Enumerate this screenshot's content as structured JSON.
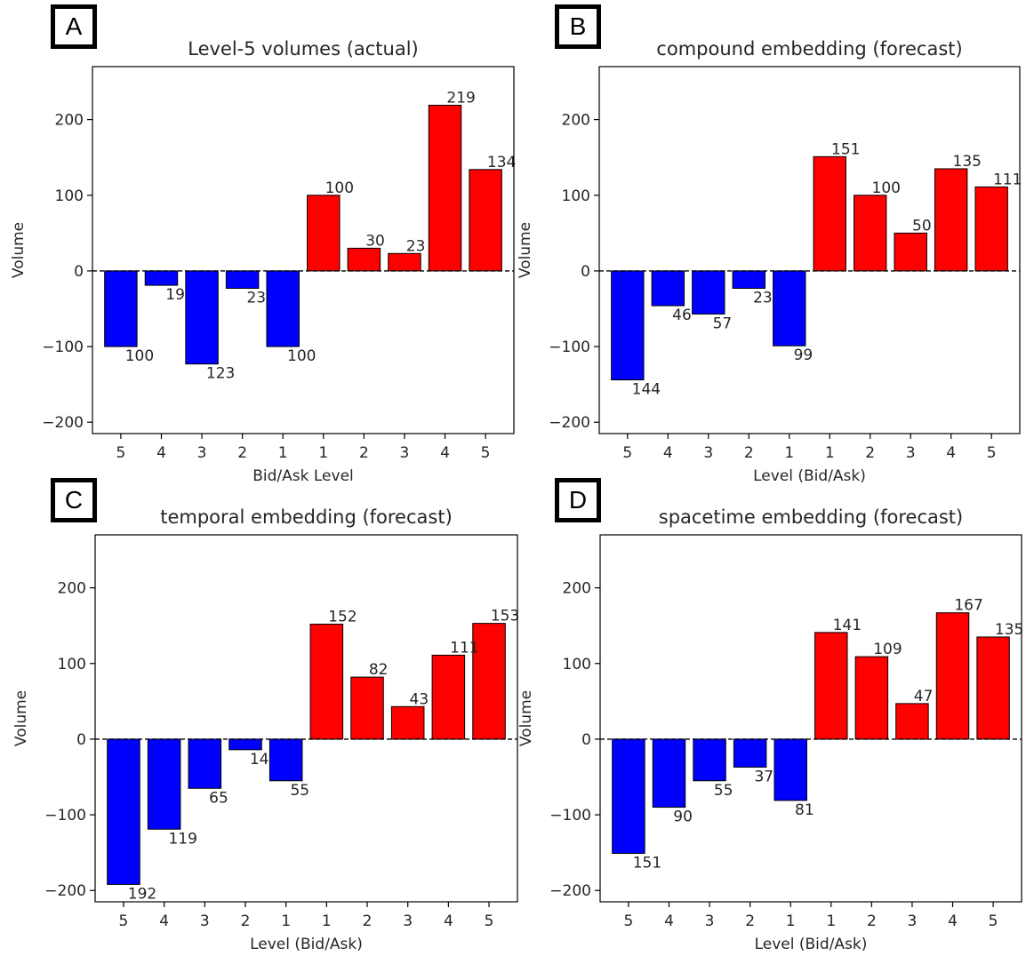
{
  "chart_data": [
    {
      "panel": "A",
      "type": "bar",
      "title": "Level-5 volumes (actual)",
      "xlabel": "Bid/Ask Level",
      "ylabel": "Volume",
      "ylim": [
        -215,
        270
      ],
      "yticks": [
        -200,
        -100,
        0,
        100,
        200
      ],
      "categories": [
        "5",
        "4",
        "3",
        "2",
        "1",
        "1",
        "2",
        "3",
        "4",
        "5"
      ],
      "values": [
        -100,
        -19,
        -123,
        -23,
        -100,
        100,
        30,
        23,
        219,
        134
      ],
      "data_labels": [
        "100",
        "19",
        "123",
        "23",
        "100",
        "100",
        "30",
        "23",
        "219",
        "134"
      ],
      "colors": {
        "bid": "#0000ff",
        "ask": "#ff0000"
      }
    },
    {
      "panel": "B",
      "type": "bar",
      "title": "compound embedding (forecast)",
      "xlabel": "Level (Bid/Ask)",
      "ylabel": "Volume",
      "ylim": [
        -215,
        270
      ],
      "yticks": [
        -200,
        -100,
        0,
        100,
        200
      ],
      "categories": [
        "5",
        "4",
        "3",
        "2",
        "1",
        "1",
        "2",
        "3",
        "4",
        "5"
      ],
      "values": [
        -144,
        -46,
        -57,
        -23,
        -99,
        151,
        100,
        50,
        135,
        111
      ],
      "data_labels": [
        "144",
        "46",
        "57",
        "23",
        "99",
        "151",
        "100",
        "50",
        "135",
        "111"
      ],
      "colors": {
        "bid": "#0000ff",
        "ask": "#ff0000"
      }
    },
    {
      "panel": "C",
      "type": "bar",
      "title": "temporal embedding (forecast)",
      "xlabel": "Level (Bid/Ask)",
      "ylabel": "Volume",
      "ylim": [
        -215,
        270
      ],
      "yticks": [
        -200,
        -100,
        0,
        100,
        200
      ],
      "categories": [
        "5",
        "4",
        "3",
        "2",
        "1",
        "1",
        "2",
        "3",
        "4",
        "5"
      ],
      "values": [
        -192,
        -119,
        -65,
        -14,
        -55,
        152,
        82,
        43,
        111,
        153
      ],
      "data_labels": [
        "192",
        "119",
        "65",
        "14",
        "55",
        "152",
        "82",
        "43",
        "111",
        "153"
      ],
      "colors": {
        "bid": "#0000ff",
        "ask": "#ff0000"
      }
    },
    {
      "panel": "D",
      "type": "bar",
      "title": "spacetime embedding (forecast)",
      "xlabel": "Level (Bid/Ask)",
      "ylabel": "Volume",
      "ylim": [
        -215,
        270
      ],
      "yticks": [
        -200,
        -100,
        0,
        100,
        200
      ],
      "categories": [
        "5",
        "4",
        "3",
        "2",
        "1",
        "1",
        "2",
        "3",
        "4",
        "5"
      ],
      "values": [
        -151,
        -90,
        -55,
        -37,
        -81,
        141,
        109,
        47,
        167,
        135
      ],
      "data_labels": [
        "151",
        "90",
        "55",
        "37",
        "81",
        "141",
        "109",
        "47",
        "167",
        "135"
      ],
      "colors": {
        "bid": "#0000ff",
        "ask": "#ff0000"
      }
    }
  ]
}
